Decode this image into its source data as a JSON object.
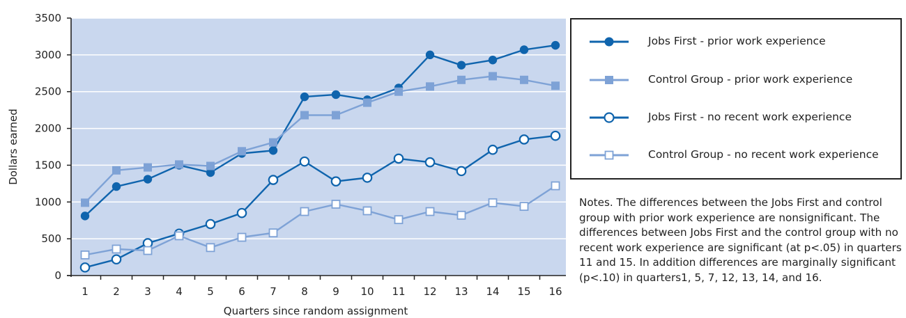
{
  "chart_data": {
    "type": "line",
    "xlabel": "Quarters since random assignment",
    "ylabel": "Dollars earned",
    "categories": [
      "1",
      "2",
      "3",
      "4",
      "5",
      "6",
      "7",
      "8",
      "9",
      "10",
      "11",
      "12",
      "13",
      "14",
      "15",
      "16"
    ],
    "ylim": [
      0,
      3500
    ],
    "yticks": [
      0,
      500,
      1000,
      1500,
      2000,
      2500,
      3000,
      3500
    ],
    "grid": true,
    "legend_position": "right",
    "series": [
      {
        "name": "Jobs First - prior work experience",
        "color": "#0f64ad",
        "marker": "filled-circle",
        "values": [
          810,
          1210,
          1310,
          1500,
          1400,
          1660,
          1700,
          2430,
          2460,
          2390,
          2550,
          3000,
          2860,
          2930,
          3070,
          3130
        ]
      },
      {
        "name": "Control Group - prior work experience",
        "color": "#7ea2d6",
        "marker": "filled-square",
        "values": [
          990,
          1430,
          1470,
          1510,
          1490,
          1690,
          1810,
          2180,
          2180,
          2350,
          2500,
          2570,
          2660,
          2710,
          2660,
          2580
        ]
      },
      {
        "name": "Jobs First - no recent work experience",
        "color": "#0f64ad",
        "marker": "open-circle",
        "values": [
          110,
          220,
          440,
          570,
          700,
          850,
          1300,
          1550,
          1280,
          1330,
          1590,
          1540,
          1420,
          1710,
          1850,
          1900
        ]
      },
      {
        "name": "Control Group - no recent work experience",
        "color": "#7ea2d6",
        "marker": "open-square",
        "values": [
          280,
          360,
          340,
          540,
          380,
          520,
          580,
          870,
          970,
          880,
          760,
          870,
          820,
          990,
          940,
          1220
        ]
      }
    ]
  },
  "notes": "Notes. The differences between the Jobs First and control group with prior work experience are nonsignificant. The differences between Jobs First and the control group with no recent work experience are significant (at p<.05) in quarters 11 and 15. In addition differences are marginally significant (p<.10) in quarters1, 5, 7, 12, 13, 14, and 16.",
  "colors": {
    "plot_background": "#c9d7ee",
    "gridline": "#ffffff",
    "axis": "#222222"
  }
}
